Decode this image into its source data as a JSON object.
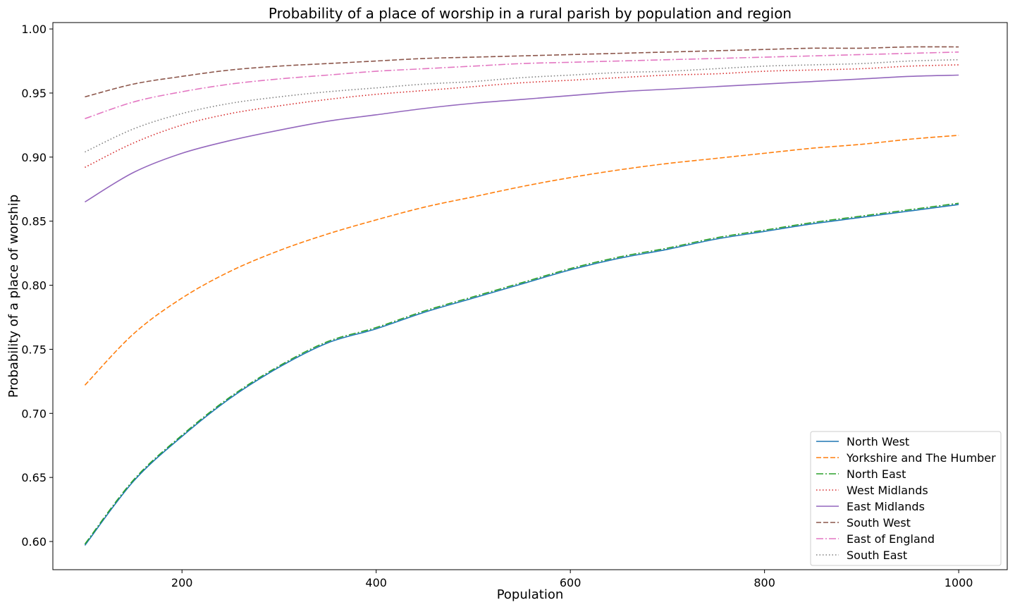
{
  "chart_data": {
    "type": "line",
    "title": "Probability of a place of worship in a rural parish by population and region",
    "xlabel": "Population",
    "ylabel": "Probability of a place of worship",
    "xlim": [
      67,
      1050
    ],
    "ylim": [
      0.578,
      1.005
    ],
    "x_ticks": [
      200,
      400,
      600,
      800,
      1000
    ],
    "x_tick_labels": [
      "200",
      "400",
      "600",
      "800",
      "1000"
    ],
    "y_ticks": [
      0.6,
      0.65,
      0.7,
      0.75,
      0.8,
      0.85,
      0.9,
      0.95,
      1.0
    ],
    "y_tick_labels": [
      "0.60",
      "0.65",
      "0.70",
      "0.75",
      "0.80",
      "0.85",
      "0.90",
      "0.95",
      "1.00"
    ],
    "grid": false,
    "legend_placement": "lower-right",
    "x": [
      100,
      150,
      200,
      250,
      300,
      350,
      400,
      450,
      500,
      550,
      600,
      650,
      700,
      750,
      800,
      850,
      900,
      950,
      1000
    ],
    "series": [
      {
        "name": "North West",
        "color": "#1f77b4",
        "dash": "solid",
        "values": [
          0.597,
          0.647,
          0.682,
          0.712,
          0.736,
          0.755,
          0.766,
          0.779,
          0.79,
          0.801,
          0.812,
          0.821,
          0.828,
          0.836,
          0.842,
          0.848,
          0.853,
          0.858,
          0.863
        ]
      },
      {
        "name": "Yorkshire and The Humber",
        "color": "#ff7f0e",
        "dash": "dashed",
        "values": [
          0.722,
          0.762,
          0.79,
          0.811,
          0.827,
          0.84,
          0.851,
          0.861,
          0.869,
          0.877,
          0.884,
          0.89,
          0.895,
          0.899,
          0.903,
          0.907,
          0.91,
          0.914,
          0.917
        ]
      },
      {
        "name": "North East",
        "color": "#2ca02c",
        "dash": "dashdot",
        "values": [
          0.598,
          0.648,
          0.683,
          0.713,
          0.737,
          0.756,
          0.767,
          0.78,
          0.791,
          0.802,
          0.813,
          0.822,
          0.829,
          0.837,
          0.843,
          0.849,
          0.854,
          0.859,
          0.864
        ]
      },
      {
        "name": "West Midlands",
        "color": "#d62728",
        "dash": "dotted",
        "values": [
          0.892,
          0.911,
          0.925,
          0.934,
          0.94,
          0.945,
          0.949,
          0.952,
          0.955,
          0.958,
          0.96,
          0.962,
          0.964,
          0.965,
          0.967,
          0.968,
          0.969,
          0.971,
          0.972
        ]
      },
      {
        "name": "East Midlands",
        "color": "#9467bd",
        "dash": "solid",
        "values": [
          0.865,
          0.888,
          0.903,
          0.913,
          0.921,
          0.928,
          0.933,
          0.938,
          0.942,
          0.945,
          0.948,
          0.951,
          0.953,
          0.955,
          0.957,
          0.959,
          0.961,
          0.963,
          0.964
        ]
      },
      {
        "name": "South West",
        "color": "#8c564b",
        "dash": "dashed",
        "values": [
          0.947,
          0.957,
          0.963,
          0.968,
          0.971,
          0.973,
          0.975,
          0.977,
          0.978,
          0.979,
          0.98,
          0.981,
          0.982,
          0.983,
          0.984,
          0.985,
          0.985,
          0.986,
          0.986
        ]
      },
      {
        "name": "East of England",
        "color": "#e377c2",
        "dash": "dashdot",
        "values": [
          0.93,
          0.943,
          0.951,
          0.957,
          0.961,
          0.964,
          0.967,
          0.969,
          0.971,
          0.973,
          0.974,
          0.975,
          0.976,
          0.977,
          0.978,
          0.979,
          0.98,
          0.981,
          0.982
        ]
      },
      {
        "name": "South East",
        "color": "#7f7f7f",
        "dash": "dotted",
        "values": [
          0.904,
          0.922,
          0.934,
          0.942,
          0.947,
          0.951,
          0.954,
          0.957,
          0.959,
          0.962,
          0.964,
          0.966,
          0.967,
          0.969,
          0.971,
          0.972,
          0.973,
          0.975,
          0.976
        ]
      }
    ]
  }
}
